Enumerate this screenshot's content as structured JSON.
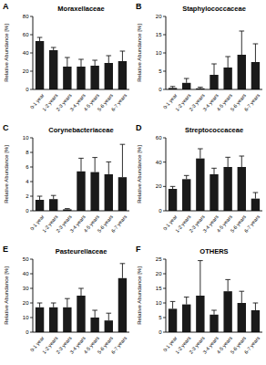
{
  "chart_data": [
    {
      "type": "bar",
      "panel": "A",
      "title": "Moraxellaceae",
      "y_label": "Relative Abundance [%]",
      "categories": [
        "0-1 year",
        "1-2 years",
        "2-3 years",
        "3-4 years",
        "4-5 years",
        "5-6 years",
        "6-7 years"
      ],
      "values": [
        53,
        43,
        25,
        25,
        26,
        29,
        31
      ],
      "errors": [
        4,
        3,
        10,
        8,
        6,
        8,
        11
      ],
      "color": "#1a1a1a",
      "ylim": [
        0,
        80
      ],
      "yticks": [
        0,
        20,
        40,
        60,
        80
      ],
      "grid": false
    },
    {
      "type": "bar",
      "panel": "B",
      "title": "Staphylococcaceae",
      "y_label": "Relative Abundance [%]",
      "categories": [
        "0-1 year",
        "1-2 years",
        "2-3 years",
        "3-4 years",
        "4-5 years",
        "5-6 years",
        "6-7 years"
      ],
      "values": [
        0.4,
        1.8,
        0.3,
        4,
        6,
        9.5,
        7.5
      ],
      "errors": [
        0.4,
        1.2,
        0.3,
        3,
        3,
        6.5,
        5
      ],
      "color": "#1a1a1a",
      "ylim": [
        0,
        20
      ],
      "yticks": [
        0,
        5,
        10,
        15,
        20
      ],
      "grid": false
    },
    {
      "type": "bar",
      "panel": "C",
      "title": "Corynebacteriaceae",
      "y_label": "Relative Abundance [%]",
      "categories": [
        "0-1 year",
        "1-2 years",
        "2-3 years",
        "3-4 years",
        "4-5 years",
        "5-6 years",
        "6-7 years"
      ],
      "values": [
        1.5,
        1.6,
        0.2,
        5.4,
        5.3,
        5,
        4.6
      ],
      "errors": [
        0.5,
        0.5,
        0.1,
        1.8,
        2,
        1.7,
        4.5
      ],
      "color": "#1a1a1a",
      "ylim": [
        0,
        10
      ],
      "yticks": [
        0,
        2,
        4,
        6,
        8,
        10
      ],
      "grid": false
    },
    {
      "type": "bar",
      "panel": "D",
      "title": "Streptococcaceae",
      "y_label": "Relative Abundance [%]",
      "categories": [
        "0-1 year",
        "1-2 years",
        "2-3 years",
        "3-4 years",
        "4-5 years",
        "5-6 years",
        "6-7 years"
      ],
      "values": [
        18,
        26,
        43,
        30,
        36,
        36,
        10
      ],
      "errors": [
        2,
        3,
        8,
        5,
        8,
        9,
        5
      ],
      "color": "#1a1a1a",
      "ylim": [
        0,
        60
      ],
      "yticks": [
        0,
        20,
        40,
        60
      ],
      "grid": false
    },
    {
      "type": "bar",
      "panel": "E",
      "title": "Pasteurellaceae",
      "y_label": "Relative Abundance [%]",
      "categories": [
        "0-1 year",
        "1-2 years",
        "2-3 years",
        "3-4 years",
        "4-5 years",
        "5-6 years",
        "6-7 years"
      ],
      "values": [
        17,
        17,
        17,
        25,
        10,
        8,
        37
      ],
      "errors": [
        3,
        3,
        6,
        5,
        5,
        5,
        10
      ],
      "color": "#1a1a1a",
      "ylim": [
        0,
        50
      ],
      "yticks": [
        0,
        10,
        20,
        30,
        40,
        50
      ],
      "grid": false
    },
    {
      "type": "bar",
      "panel": "F",
      "title": "OTHERS",
      "y_label": "Relative Abundance [%]",
      "categories": [
        "0-1 year",
        "1-2 years",
        "2-3 years",
        "3-4 years",
        "4-5 years",
        "5-6 years",
        "6-7 years"
      ],
      "values": [
        8,
        9.5,
        12.5,
        6,
        14,
        10,
        7.5
      ],
      "errors": [
        2.5,
        2.5,
        12,
        1.5,
        4,
        4,
        2.5
      ],
      "color": "#1a1a1a",
      "ylim": [
        0,
        25
      ],
      "yticks": [
        0,
        5,
        10,
        15,
        20,
        25
      ],
      "grid": false
    }
  ]
}
